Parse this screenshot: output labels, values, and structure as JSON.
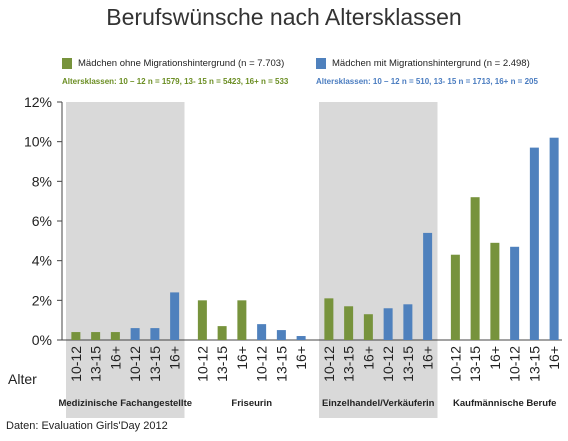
{
  "chart_data": {
    "type": "bar",
    "title": "Berufswünsche nach Altersklassen",
    "source": "Daten: Evaluation Girls'Day 2012",
    "x_axis_label": "Alter",
    "ylim": [
      0,
      12
    ],
    "y_ticks": [
      "0%",
      "2%",
      "4%",
      "6%",
      "8%",
      "10%",
      "12%"
    ],
    "y_tick_values": [
      0,
      2,
      4,
      6,
      8,
      10,
      12
    ],
    "grid": false,
    "legend_position": "top",
    "colors": {
      "green": "#77933c",
      "blue": "#4f81bd",
      "group_shade": "#d9d9d9"
    },
    "legend": {
      "green": {
        "label": "Mädchen ohne Migrationshintergrund (n = 7.703)",
        "subtitle": "Altersklassen: 10 – 12 n = 1579,  13- 15 n = 5423, 16+ n = 533"
      },
      "blue": {
        "label": "Mädchen mit Migrationshintergrund (n = 2.498)",
        "subtitle": "Altersklassen: 10 – 12 n = 510,  13- 15 n = 1713, 16+ n = 205"
      }
    },
    "groups": [
      {
        "name": "Medizinische Fachangestellte",
        "shaded": true,
        "bars": [
          {
            "label": "10-12",
            "series": "green",
            "value": 0.4
          },
          {
            "label": "13-15",
            "series": "green",
            "value": 0.4
          },
          {
            "label": "16+",
            "series": "green",
            "value": 0.4
          },
          {
            "label": "10-12",
            "series": "blue",
            "value": 0.6
          },
          {
            "label": "13-15",
            "series": "blue",
            "value": 0.6
          },
          {
            "label": "16+",
            "series": "blue",
            "value": 2.4
          }
        ]
      },
      {
        "name": "Friseurin",
        "shaded": false,
        "bars": [
          {
            "label": "10-12",
            "series": "green",
            "value": 2.0
          },
          {
            "label": "13-15",
            "series": "green",
            "value": 0.7
          },
          {
            "label": "16+",
            "series": "green",
            "value": 2.0
          },
          {
            "label": "10-12",
            "series": "blue",
            "value": 0.8
          },
          {
            "label": "13-15",
            "series": "blue",
            "value": 0.5
          },
          {
            "label": "16+",
            "series": "blue",
            "value": 0.2
          }
        ]
      },
      {
        "name": "Einzelhandel/Verkäuferin",
        "shaded": true,
        "bars": [
          {
            "label": "10-12",
            "series": "green",
            "value": 2.1
          },
          {
            "label": "13-15",
            "series": "green",
            "value": 1.7
          },
          {
            "label": "16+",
            "series": "green",
            "value": 1.3
          },
          {
            "label": "10-12",
            "series": "blue",
            "value": 1.6
          },
          {
            "label": "13-15",
            "series": "blue",
            "value": 1.8
          },
          {
            "label": "16+",
            "series": "blue",
            "value": 5.4
          }
        ]
      },
      {
        "name": "Kaufmännische Berufe",
        "shaded": false,
        "bars": [
          {
            "label": "10-12",
            "series": "green",
            "value": 4.3
          },
          {
            "label": "13-15",
            "series": "green",
            "value": 7.2
          },
          {
            "label": "16+",
            "series": "green",
            "value": 4.9
          },
          {
            "label": "10-12",
            "series": "blue",
            "value": 4.7
          },
          {
            "label": "13-15",
            "series": "blue",
            "value": 9.7
          },
          {
            "label": "16+",
            "series": "blue",
            "value": 10.2
          }
        ]
      }
    ]
  }
}
